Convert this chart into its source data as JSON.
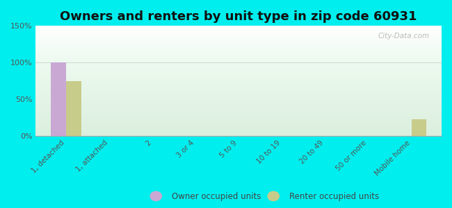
{
  "title": "Owners and renters by unit type in zip code 60931",
  "categories": [
    "1, detached",
    "1, attached",
    "2",
    "3 or 4",
    "5 to 9",
    "10 to 19",
    "20 to 49",
    "50 or more",
    "Mobile home"
  ],
  "owner_values": [
    100,
    0,
    0,
    0,
    0,
    0,
    0,
    0,
    0
  ],
  "renter_values": [
    75,
    0,
    0,
    0,
    0,
    0,
    0,
    0,
    22
  ],
  "owner_color": "#c9a8d4",
  "renter_color": "#c8cc8a",
  "ylim": [
    0,
    150
  ],
  "yticks": [
    0,
    50,
    100,
    150
  ],
  "ytick_labels": [
    "0%",
    "50%",
    "100%",
    "150%"
  ],
  "bg_top_color": "#d6ede0",
  "bg_bottom_color": "#f2faf5",
  "bg_upper_color": "#e8f5f0",
  "outer_bg": "#00eeee",
  "watermark": "City-Data.com",
  "legend_owner": "Owner occupied units",
  "legend_renter": "Renter occupied units",
  "title_fontsize": 13,
  "bar_width": 0.35
}
